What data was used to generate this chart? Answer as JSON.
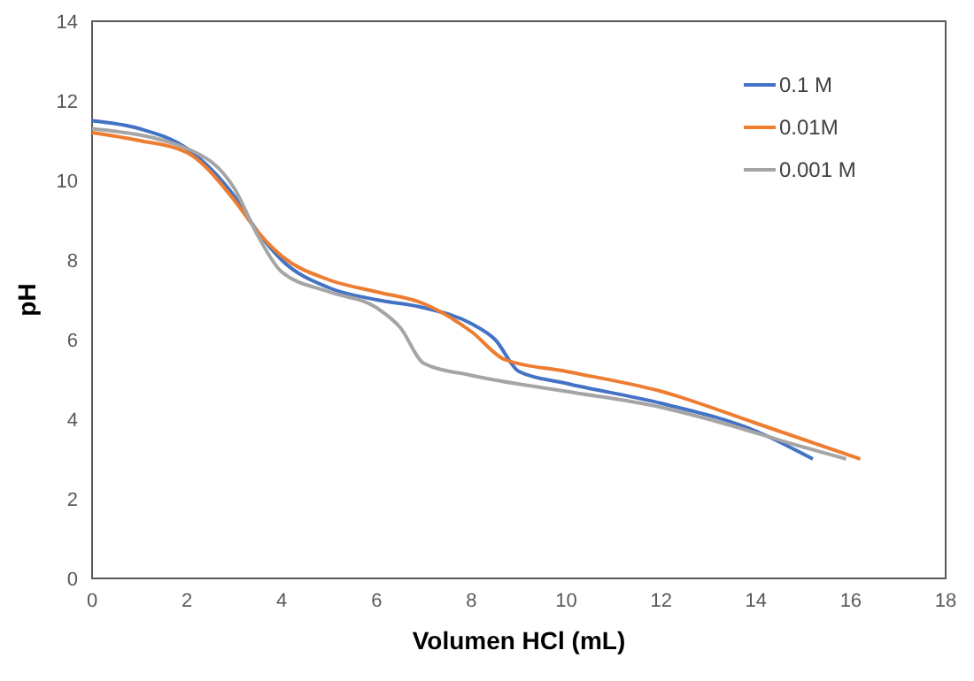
{
  "chart_data": {
    "type": "line",
    "xlabel": "Volumen HCl (mL)",
    "ylabel": "pH",
    "xlim": [
      0,
      18
    ],
    "xticks": [
      0,
      2,
      4,
      6,
      8,
      10,
      12,
      14,
      16,
      18
    ],
    "ylim": [
      0,
      14
    ],
    "yticks": [
      0,
      2,
      4,
      6,
      8,
      10,
      12,
      14
    ],
    "legend": "top right",
    "grid": false,
    "marker": "none",
    "line_style": "solid",
    "series": [
      {
        "name": "0.1 M",
        "color": "#4472c4",
        "x": [
          0,
          1,
          2,
          3,
          3.5,
          4,
          5,
          6,
          7,
          8,
          8.5,
          9,
          10,
          12,
          14,
          15.2
        ],
        "values": [
          11.5,
          11.3,
          10.8,
          9.6,
          8.7,
          8.0,
          7.3,
          7.0,
          6.8,
          6.4,
          6.0,
          5.2,
          4.9,
          4.4,
          3.7,
          3.0
        ]
      },
      {
        "name": "0.01M",
        "color": "#ed7d31",
        "x": [
          0,
          1,
          2,
          3,
          3.5,
          4,
          5,
          6,
          7,
          8,
          8.7,
          10,
          12,
          14,
          16.2
        ],
        "values": [
          11.2,
          11.0,
          10.7,
          9.5,
          8.7,
          8.1,
          7.5,
          7.2,
          6.9,
          6.2,
          5.5,
          5.2,
          4.7,
          3.9,
          3.0
        ]
      },
      {
        "name": "0.001 M",
        "color": "#a5a5a5",
        "x": [
          0,
          2,
          3,
          3.5,
          4,
          5,
          6,
          6.5,
          7,
          8,
          10,
          12,
          13,
          15,
          15.9
        ],
        "values": [
          11.3,
          10.8,
          9.8,
          8.6,
          7.7,
          7.2,
          6.8,
          6.3,
          5.4,
          5.1,
          4.7,
          4.3,
          4.0,
          3.3,
          3.0
        ]
      }
    ]
  }
}
